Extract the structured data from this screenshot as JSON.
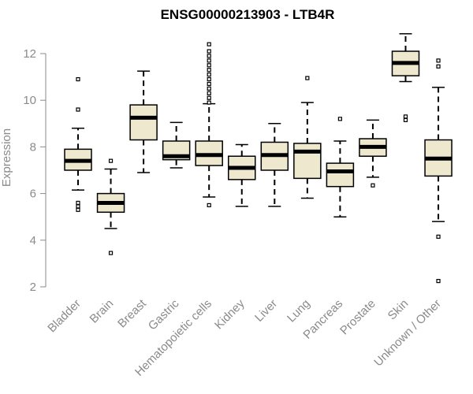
{
  "chart_data": {
    "type": "box",
    "title": "ENSG00000213903 - LTB4R",
    "xlabel": "",
    "ylabel": "Expression",
    "ylim": [
      2,
      12.5
    ],
    "yticks": [
      2,
      4,
      6,
      8,
      10,
      12
    ],
    "grid": false,
    "box_fill": "#EEE8CE",
    "median_color": "#000000",
    "axis_color": "#8a8a8a",
    "categories": [
      "Bladder",
      "Brain",
      "Breast",
      "Gastric",
      "Hematopoietic cells",
      "Kidney",
      "Liver",
      "Lung",
      "Pancreas",
      "Prostate",
      "Skin",
      "Unknown / Other"
    ],
    "boxes": [
      {
        "category": "Bladder",
        "whisker_low": 6.15,
        "q1": 7.0,
        "median": 7.4,
        "q3": 7.9,
        "whisker_high": 8.8,
        "outliers": [
          5.3,
          5.45,
          5.6,
          9.6,
          10.9
        ]
      },
      {
        "category": "Brain",
        "whisker_low": 4.5,
        "q1": 5.2,
        "median": 5.6,
        "q3": 6.0,
        "whisker_high": 7.05,
        "outliers": [
          3.45,
          7.4
        ]
      },
      {
        "category": "Breast",
        "whisker_low": 6.9,
        "q1": 8.3,
        "median": 9.25,
        "q3": 9.8,
        "whisker_high": 11.25,
        "outliers": []
      },
      {
        "category": "Gastric",
        "whisker_low": 7.1,
        "q1": 7.45,
        "median": 7.6,
        "q3": 8.25,
        "whisker_high": 9.05,
        "outliers": []
      },
      {
        "category": "Hematopoietic cells",
        "whisker_low": 5.85,
        "q1": 7.2,
        "median": 7.65,
        "q3": 8.25,
        "whisker_high": 9.85,
        "outliers": [
          5.5,
          9.9,
          10.1,
          10.3,
          10.5,
          10.7,
          10.9,
          11.1,
          11.3,
          11.5,
          11.7,
          11.9,
          12.1,
          12.4
        ]
      },
      {
        "category": "Kidney",
        "whisker_low": 5.45,
        "q1": 6.6,
        "median": 7.1,
        "q3": 7.6,
        "whisker_high": 8.1,
        "outliers": []
      },
      {
        "category": "Liver",
        "whisker_low": 5.45,
        "q1": 7.0,
        "median": 7.65,
        "q3": 8.2,
        "whisker_high": 9.0,
        "outliers": []
      },
      {
        "category": "Lung",
        "whisker_low": 5.8,
        "q1": 6.65,
        "median": 7.8,
        "q3": 8.15,
        "whisker_high": 9.9,
        "outliers": [
          10.95
        ]
      },
      {
        "category": "Pancreas",
        "whisker_low": 5.0,
        "q1": 6.3,
        "median": 6.95,
        "q3": 7.3,
        "whisker_high": 8.25,
        "outliers": [
          9.2
        ]
      },
      {
        "category": "Prostate",
        "whisker_low": 6.7,
        "q1": 7.6,
        "median": 8.0,
        "q3": 8.35,
        "whisker_high": 9.15,
        "outliers": [
          6.35
        ]
      },
      {
        "category": "Skin",
        "whisker_low": 10.8,
        "q1": 11.05,
        "median": 11.6,
        "q3": 12.1,
        "whisker_high": 12.85,
        "outliers": [
          9.15,
          9.3
        ]
      },
      {
        "category": "Unknown / Other",
        "whisker_low": 4.8,
        "q1": 6.75,
        "median": 7.5,
        "q3": 8.3,
        "whisker_high": 10.55,
        "outliers": [
          2.25,
          4.15,
          11.45,
          11.7
        ]
      }
    ]
  }
}
